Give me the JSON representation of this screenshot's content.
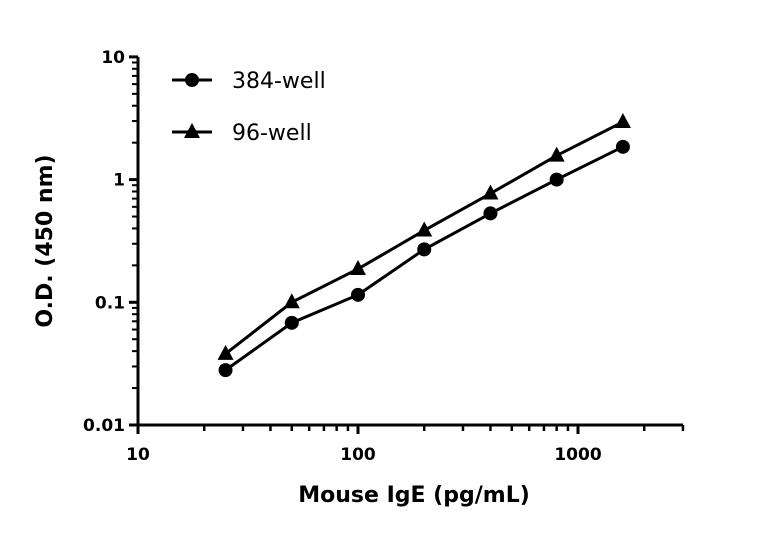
{
  "chart_data": {
    "type": "line",
    "title": "",
    "xlabel": "Mouse IgE (pg/mL)",
    "ylabel": "O.D. (450 nm)",
    "xscale": "log",
    "yscale": "log",
    "xlim": [
      10,
      3000
    ],
    "ylim": [
      0.01,
      10
    ],
    "xticks": [
      10,
      100,
      1000
    ],
    "xtick_labels": [
      "10",
      "100",
      "1000"
    ],
    "yticks": [
      0.01,
      0.1,
      1,
      10
    ],
    "ytick_labels": [
      "0.01",
      "0.1",
      "1",
      "10"
    ],
    "grid": false,
    "legend_placement": "top-left",
    "x": [
      25,
      50,
      100,
      200,
      400,
      800,
      1600
    ],
    "series": [
      {
        "name": "384-well",
        "marker": "circle",
        "color": "#000000",
        "values": [
          0.028,
          0.068,
          0.115,
          0.27,
          0.53,
          1.0,
          1.85
        ]
      },
      {
        "name": "96-well",
        "marker": "triangle",
        "color": "#000000",
        "values": [
          0.038,
          0.1,
          0.187,
          0.385,
          0.77,
          1.57,
          2.95
        ]
      }
    ]
  }
}
